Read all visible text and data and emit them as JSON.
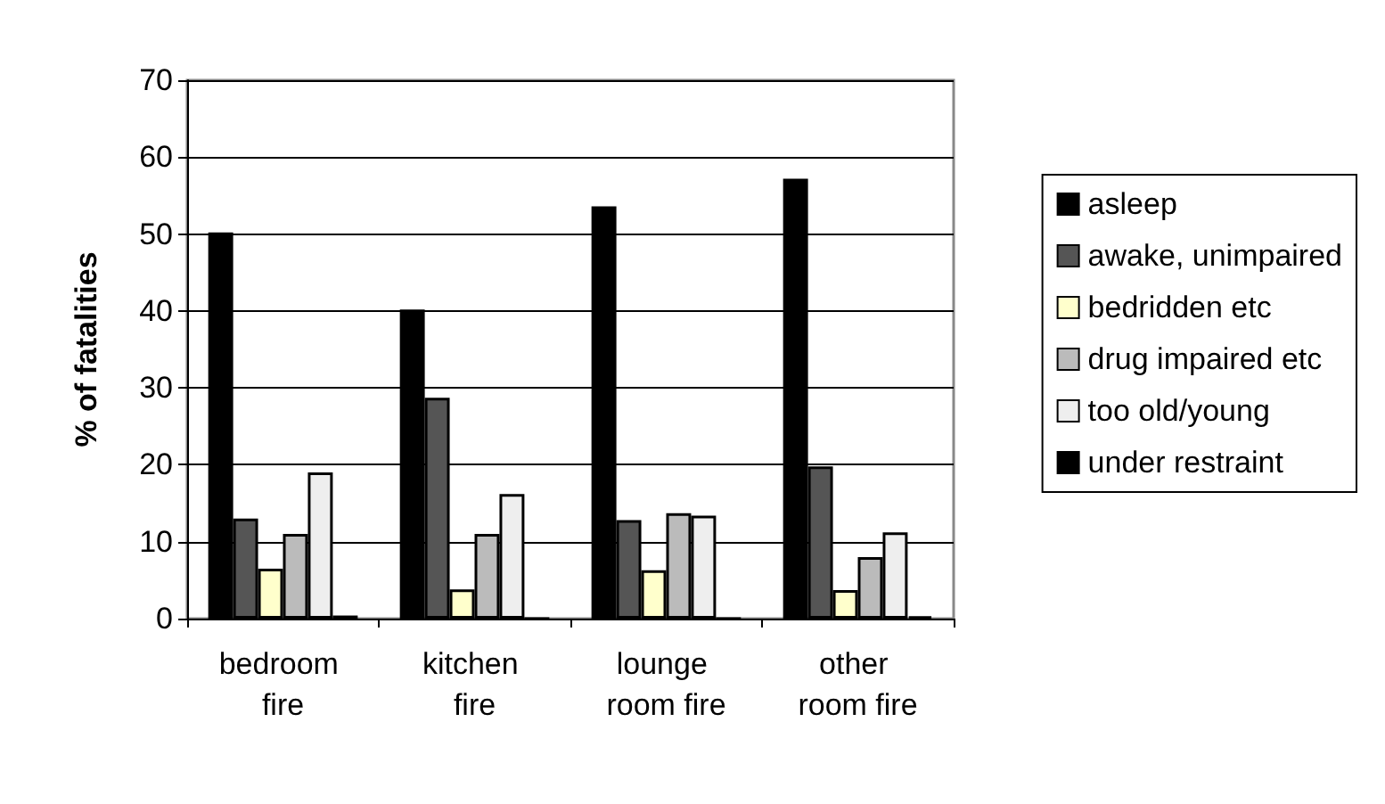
{
  "chart_data": {
    "type": "bar",
    "ylabel": "% of fatalities",
    "categories": [
      "bedroom fire",
      "kitchen fire",
      "lounge room fire",
      "other room fire"
    ],
    "series": [
      {
        "name": "asleep",
        "color": "#000000",
        "values": [
          50.2,
          40.2,
          53.6,
          57.2
        ]
      },
      {
        "name": "awake, unimpaired",
        "color": "#555555",
        "values": [
          13,
          28.7,
          12.8,
          19.8
        ]
      },
      {
        "name": "bedridden etc",
        "color": "#ffffcc",
        "values": [
          6.5,
          3.8,
          6.3,
          3.7
        ]
      },
      {
        "name": "drug impaired etc",
        "color": "#bbbbbb",
        "values": [
          11,
          11,
          13.7,
          8
        ]
      },
      {
        "name": "too old/young",
        "color": "#eeeeee",
        "values": [
          19,
          16.2,
          13.4,
          11.2
        ]
      },
      {
        "name": "under restraint",
        "color": "#000000",
        "values": [
          0.4,
          0,
          0,
          0.3
        ]
      }
    ],
    "ylim": [
      0,
      70
    ],
    "yticks": [
      0,
      10,
      20,
      30,
      40,
      50,
      60,
      70
    ],
    "grid": "y",
    "legend": "right"
  }
}
